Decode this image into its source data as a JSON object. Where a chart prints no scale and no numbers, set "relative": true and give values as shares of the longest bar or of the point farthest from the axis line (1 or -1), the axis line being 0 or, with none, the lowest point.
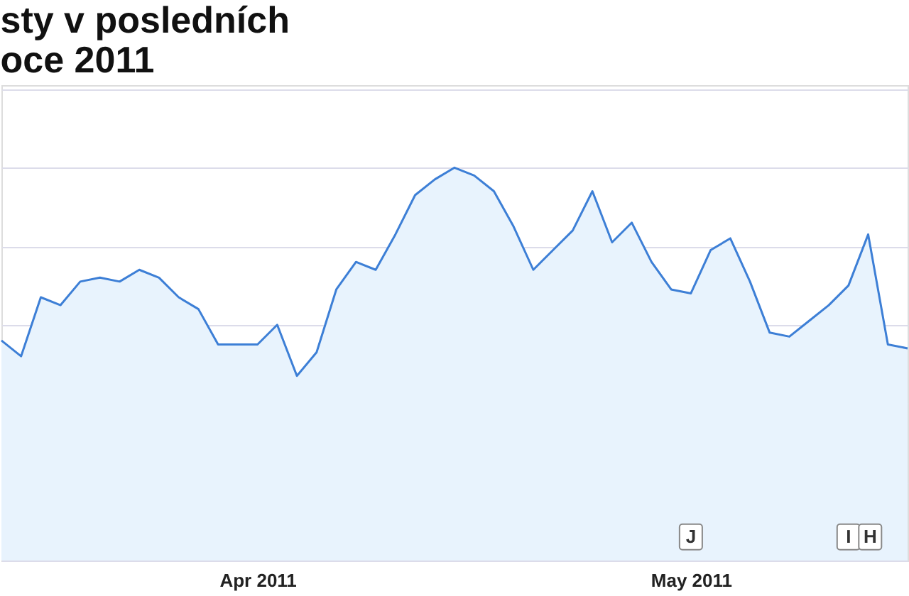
{
  "chart_data": {
    "type": "area",
    "title": "sty v posledních\noce 2011",
    "relative": true,
    "categories": [
      null,
      null,
      null,
      null,
      null,
      null,
      null,
      null,
      null,
      null,
      null,
      null,
      null,
      "Apr 2011",
      null,
      null,
      null,
      null,
      null,
      null,
      null,
      null,
      null,
      null,
      null,
      null,
      null,
      null,
      null,
      null,
      null,
      null,
      null,
      null,
      null,
      "May 2011",
      null,
      null,
      null,
      null,
      null,
      null,
      null,
      null,
      null,
      null,
      null
    ],
    "series": [
      {
        "color": "#3d7fd6",
        "values": [
          0.56,
          0.52,
          0.67,
          0.65,
          0.71,
          0.72,
          0.71,
          0.74,
          0.72,
          0.67,
          0.64,
          0.55,
          0.55,
          0.55,
          0.6,
          0.47,
          0.53,
          0.69,
          0.76,
          0.74,
          0.83,
          0.93,
          0.97,
          1,
          0.98,
          0.94,
          0.85,
          0.74,
          0.79,
          0.84,
          0.94,
          0.81,
          0.86,
          0.76,
          0.69,
          0.68,
          0.79,
          0.82,
          0.71,
          0.58,
          0.57,
          0.61,
          0.65,
          0.7,
          0.83,
          0.55,
          0.54
        ]
      }
    ],
    "annotations": [
      "J",
      "I",
      "H"
    ],
    "grid": "y"
  }
}
